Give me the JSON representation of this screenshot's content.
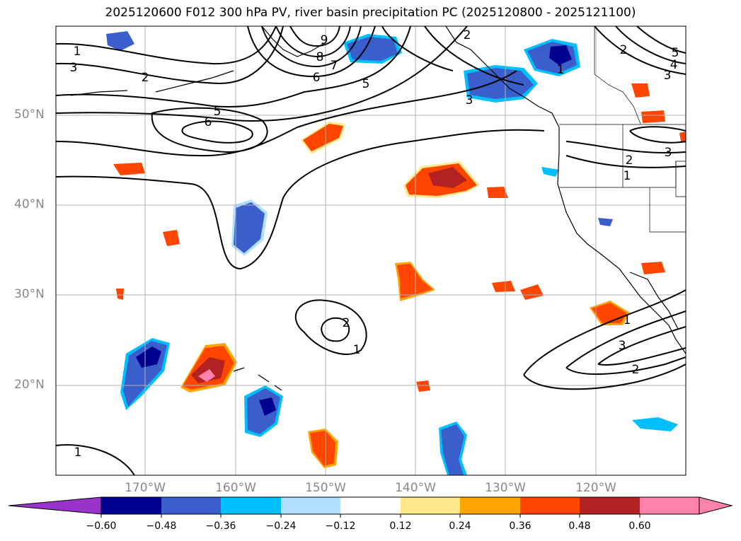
{
  "title": "2025120600 F012 300 hPa PV, river basin precipitation PC (2025120800 - 2025121100)",
  "lat_labels": [
    "50°N",
    "40°N",
    "30°N",
    "20°N"
  ],
  "lon_labels": [
    "170°W",
    "160°W",
    "150°W",
    "140°W",
    "130°W",
    "120°W"
  ],
  "contour_labels": [
    "1",
    "3",
    "2",
    "9",
    "8",
    "7",
    "6",
    "5",
    "5",
    "6",
    "3",
    "2",
    "1",
    "1",
    "2",
    "1",
    "2",
    "3",
    "2",
    "1",
    "3",
    "4",
    "5",
    "3",
    "2",
    "1"
  ],
  "colorbar": {
    "ticks": [
      "−0.60",
      "−0.48",
      "−0.36",
      "−0.24",
      "−0.12",
      "0.12",
      "0.24",
      "0.36",
      "0.48",
      "0.60"
    ],
    "colors": [
      "#9933cc",
      "#000090",
      "#3a5fcd",
      "#00bfff",
      "#b0e2ff",
      "#ffffff",
      "#ffe98a",
      "#ffa500",
      "#ff4500",
      "#b22222",
      "#ff82ab"
    ]
  },
  "colors": {
    "coast": "#000000",
    "grid": "#b0b0b0",
    "contour": "#000000"
  }
}
